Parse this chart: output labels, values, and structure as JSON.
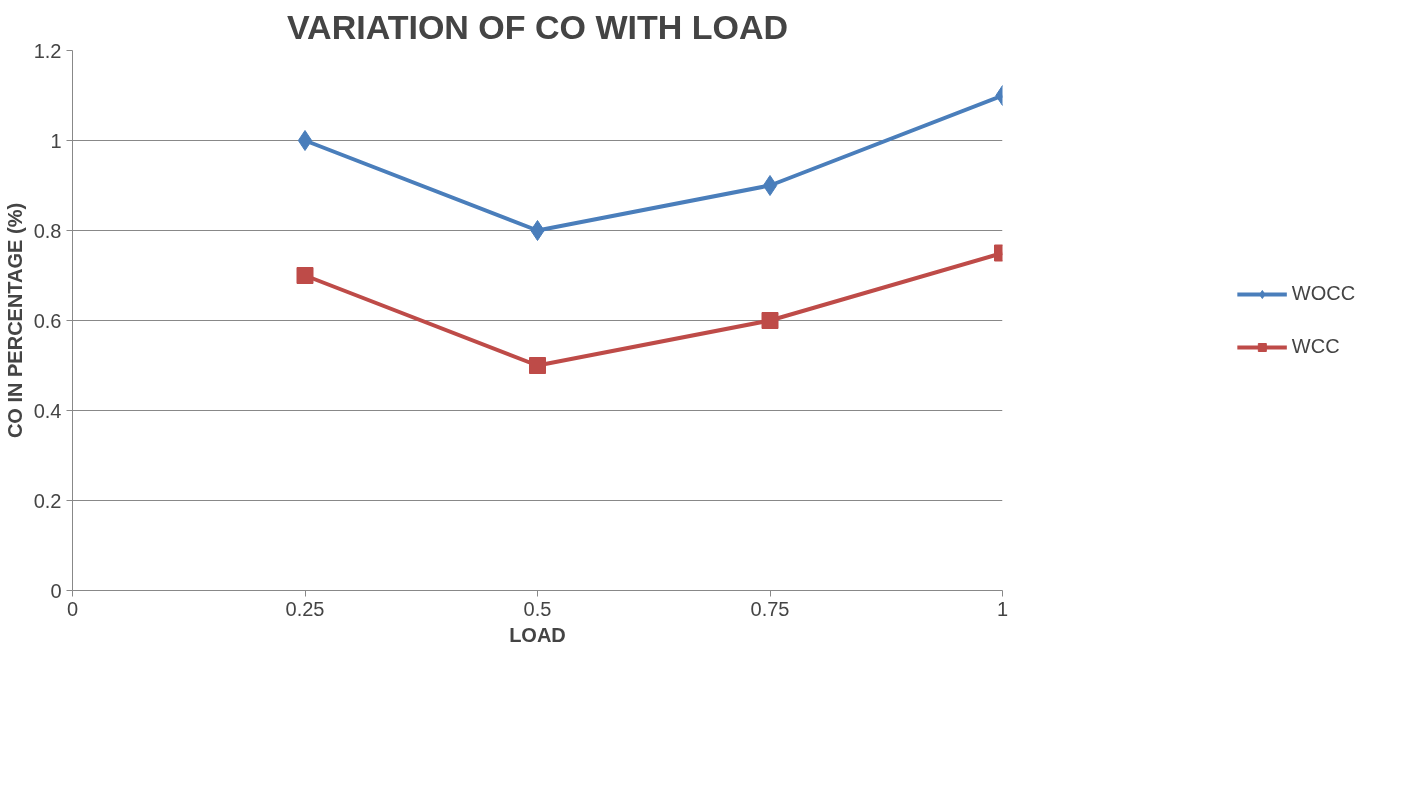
{
  "chart_data": {
    "type": "line",
    "title": "VARIATION OF CO WITH LOAD",
    "xlabel": "LOAD",
    "ylabel": "CO IN PERCENTAGE (%)",
    "x": [
      0.25,
      0.5,
      0.75,
      1
    ],
    "series": [
      {
        "name": "WOCC",
        "color": "#4a7ebb",
        "marker": "diamond",
        "values": [
          1,
          0.8,
          0.9,
          1.1
        ]
      },
      {
        "name": "WCC",
        "color": "#be4b48",
        "marker": "square",
        "values": [
          0.7,
          0.5,
          0.6,
          0.75
        ]
      }
    ],
    "xlim": [
      0,
      1
    ],
    "xticks": [
      0,
      0.25,
      0.5,
      0.75,
      1
    ],
    "ylim": [
      0,
      1.2
    ],
    "yticks": [
      0,
      0.2,
      0.4,
      0.6,
      0.8,
      1,
      1.2
    ],
    "grid": "y",
    "legend": "right",
    "line_style": "solid"
  }
}
